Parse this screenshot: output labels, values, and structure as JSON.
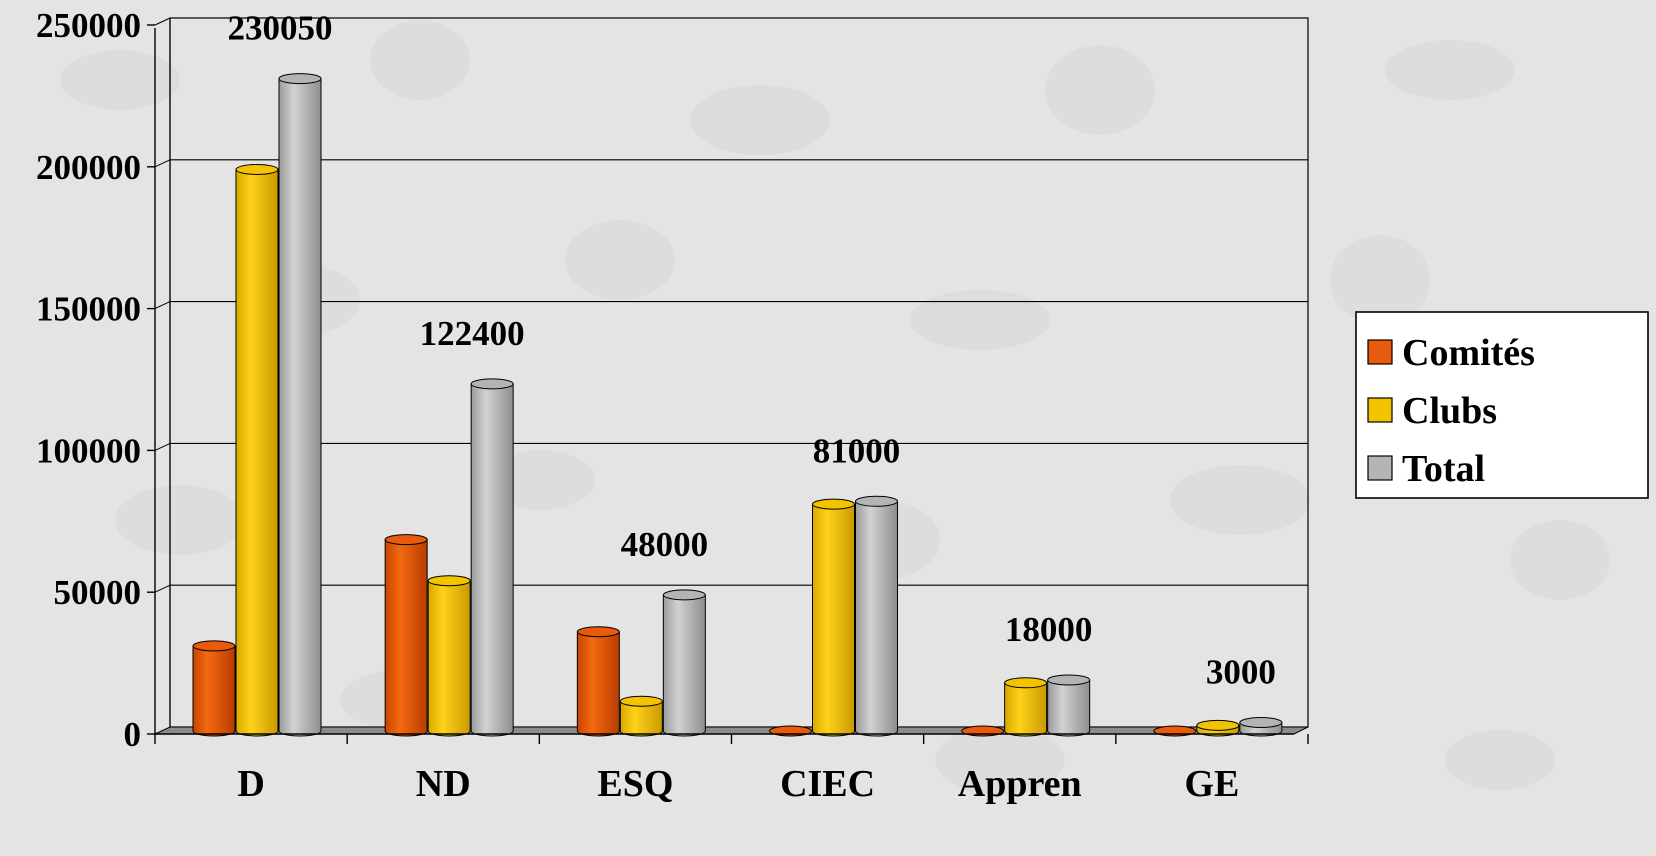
{
  "chart_data": {
    "type": "bar",
    "categories": [
      "D",
      "ND",
      "ESQ",
      "CIEC",
      "Appren",
      "GE"
    ],
    "series": [
      {
        "name": "Comités",
        "values": [
          30000,
          67500,
          35000,
          0,
          0,
          0
        ]
      },
      {
        "name": "Clubs",
        "values": [
          198000,
          53000,
          10500,
          80000,
          17000,
          2000
        ]
      },
      {
        "name": "Total",
        "values": [
          230050,
          122400,
          48000,
          81000,
          18000,
          3000
        ]
      }
    ],
    "data_labels": [
      "230050",
      "122400",
      "48000",
      "81000",
      "18000",
      "3000"
    ],
    "y_ticks": [
      "0",
      "50000",
      "100000",
      "150000",
      "200000",
      "250000"
    ],
    "ylim": [
      0,
      250000
    ],
    "grid": true,
    "legend_position": "right",
    "colors": {
      "Comités": "#e85a0c",
      "Clubs": "#f2c400",
      "Total": "#b4b4b4",
      "floor": "#8c8c8c",
      "background": "#e4e4e4"
    }
  }
}
